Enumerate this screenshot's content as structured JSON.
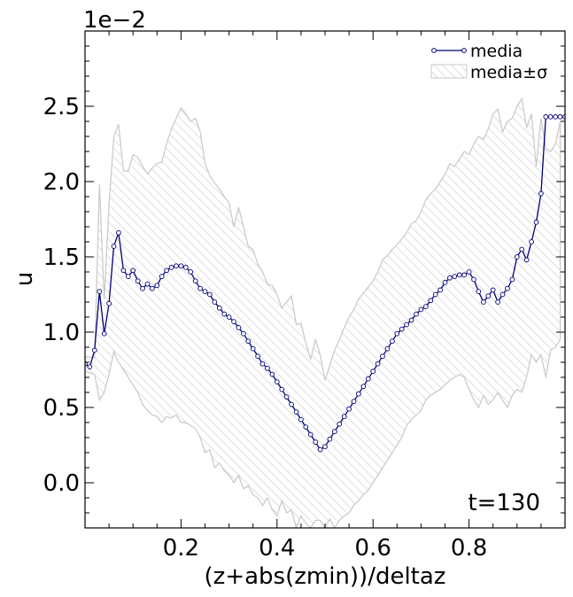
{
  "chart_data": {
    "type": "line",
    "xlabel": "(z+abs(zmin))/deltaz",
    "ylabel": "u",
    "offset_label": "1e−2",
    "annotation": "t=130",
    "xlim": [
      0.0,
      1.0
    ],
    "ylim": [
      -0.3,
      3.0
    ],
    "xticks": [
      0.2,
      0.4,
      0.6,
      0.8
    ],
    "xtick_labels": [
      "0.2",
      "0.4",
      "0.6",
      "0.8"
    ],
    "yticks": [
      0.0,
      0.5,
      1.0,
      1.5,
      2.0,
      2.5
    ],
    "ytick_labels": [
      "0.0",
      "0.5",
      "1.0",
      "1.5",
      "2.0",
      "2.5"
    ],
    "grid": false,
    "legend_position": "top-right",
    "colors": {
      "line": "#00007a",
      "band_edge": "#c8c8c8",
      "band_hatch": "#d9d9d9"
    },
    "series": [
      {
        "name": "media",
        "x": [
          0.0,
          0.01,
          0.02,
          0.03,
          0.04,
          0.05,
          0.06,
          0.07,
          0.08,
          0.09,
          0.1,
          0.11,
          0.12,
          0.13,
          0.14,
          0.15,
          0.16,
          0.17,
          0.18,
          0.19,
          0.2,
          0.21,
          0.22,
          0.23,
          0.24,
          0.25,
          0.26,
          0.27,
          0.28,
          0.29,
          0.3,
          0.31,
          0.32,
          0.33,
          0.34,
          0.35,
          0.36,
          0.37,
          0.38,
          0.39,
          0.4,
          0.41,
          0.42,
          0.43,
          0.44,
          0.45,
          0.46,
          0.47,
          0.48,
          0.49,
          0.5,
          0.51,
          0.52,
          0.53,
          0.54,
          0.55,
          0.56,
          0.57,
          0.58,
          0.59,
          0.6,
          0.61,
          0.62,
          0.63,
          0.64,
          0.65,
          0.66,
          0.67,
          0.68,
          0.69,
          0.7,
          0.71,
          0.72,
          0.73,
          0.74,
          0.75,
          0.76,
          0.77,
          0.78,
          0.79,
          0.8,
          0.81,
          0.82,
          0.83,
          0.84,
          0.85,
          0.86,
          0.87,
          0.88,
          0.89,
          0.9,
          0.91,
          0.92,
          0.93,
          0.94,
          0.95,
          0.96,
          0.97,
          0.98,
          0.99,
          1.0
        ],
        "y": [
          0.79,
          0.77,
          0.88,
          1.27,
          0.99,
          1.19,
          1.57,
          1.66,
          1.41,
          1.37,
          1.41,
          1.34,
          1.29,
          1.32,
          1.29,
          1.31,
          1.37,
          1.41,
          1.43,
          1.44,
          1.44,
          1.43,
          1.4,
          1.34,
          1.29,
          1.27,
          1.25,
          1.2,
          1.16,
          1.12,
          1.1,
          1.07,
          1.03,
          0.99,
          0.94,
          0.89,
          0.84,
          0.79,
          0.76,
          0.72,
          0.67,
          0.62,
          0.57,
          0.52,
          0.47,
          0.42,
          0.37,
          0.32,
          0.27,
          0.22,
          0.24,
          0.29,
          0.34,
          0.39,
          0.44,
          0.49,
          0.54,
          0.59,
          0.64,
          0.69,
          0.74,
          0.79,
          0.84,
          0.89,
          0.94,
          0.99,
          1.02,
          1.05,
          1.08,
          1.12,
          1.15,
          1.17,
          1.21,
          1.25,
          1.28,
          1.33,
          1.36,
          1.37,
          1.38,
          1.38,
          1.4,
          1.35,
          1.27,
          1.2,
          1.24,
          1.28,
          1.2,
          1.25,
          1.29,
          1.35,
          1.5,
          1.55,
          1.48,
          1.6,
          1.73,
          1.92,
          2.43,
          2.43,
          2.43,
          2.43,
          2.43
        ]
      },
      {
        "name": "media±σ",
        "x": [
          0.0,
          0.02,
          0.03,
          0.04,
          0.05,
          0.06,
          0.07,
          0.08,
          0.09,
          0.1,
          0.11,
          0.12,
          0.13,
          0.14,
          0.15,
          0.16,
          0.17,
          0.18,
          0.19,
          0.2,
          0.21,
          0.22,
          0.23,
          0.24,
          0.25,
          0.26,
          0.27,
          0.28,
          0.29,
          0.3,
          0.31,
          0.32,
          0.33,
          0.34,
          0.35,
          0.36,
          0.37,
          0.38,
          0.39,
          0.4,
          0.41,
          0.42,
          0.43,
          0.44,
          0.45,
          0.46,
          0.47,
          0.48,
          0.49,
          0.5,
          0.51,
          0.52,
          0.53,
          0.54,
          0.55,
          0.56,
          0.57,
          0.58,
          0.59,
          0.6,
          0.61,
          0.62,
          0.63,
          0.64,
          0.65,
          0.66,
          0.67,
          0.68,
          0.69,
          0.7,
          0.71,
          0.72,
          0.73,
          0.74,
          0.75,
          0.76,
          0.77,
          0.78,
          0.79,
          0.8,
          0.81,
          0.82,
          0.83,
          0.84,
          0.85,
          0.86,
          0.87,
          0.88,
          0.89,
          0.9,
          0.91,
          0.92,
          0.93,
          0.94,
          0.95,
          0.96,
          0.97,
          0.98,
          0.99
        ],
        "upper": [
          0.84,
          0.83,
          1.98,
          1.22,
          1.85,
          2.3,
          2.38,
          2.07,
          2.07,
          2.18,
          2.16,
          2.1,
          2.05,
          2.09,
          2.12,
          2.13,
          2.25,
          2.35,
          2.42,
          2.49,
          2.45,
          2.4,
          2.42,
          2.33,
          2.12,
          2.04,
          1.99,
          1.95,
          1.9,
          1.86,
          1.7,
          1.83,
          1.7,
          1.57,
          1.55,
          1.45,
          1.4,
          1.32,
          1.31,
          1.25,
          1.16,
          1.2,
          1.24,
          1.05,
          1.06,
          0.93,
          0.82,
          0.95,
          0.85,
          0.68,
          0.78,
          0.88,
          0.95,
          1.03,
          1.1,
          1.15,
          1.22,
          1.26,
          1.3,
          1.34,
          1.4,
          1.48,
          1.51,
          1.55,
          1.58,
          1.62,
          1.66,
          1.72,
          1.74,
          1.8,
          1.88,
          1.92,
          1.95,
          2.0,
          2.05,
          2.12,
          2.1,
          2.15,
          2.2,
          2.18,
          2.25,
          2.3,
          2.28,
          2.35,
          2.45,
          2.48,
          2.33,
          2.4,
          2.42,
          2.5,
          2.55,
          2.36,
          2.45,
          2.1,
          2.42,
          2.22,
          2.2,
          2.25,
          2.4
        ],
        "lower": [
          0.74,
          0.72,
          0.55,
          0.6,
          0.72,
          0.87,
          0.8,
          0.75,
          0.7,
          0.65,
          0.6,
          0.52,
          0.48,
          0.45,
          0.44,
          0.4,
          0.44,
          0.43,
          0.45,
          0.4,
          0.4,
          0.38,
          0.36,
          0.3,
          0.2,
          0.22,
          0.1,
          0.13,
          0.08,
          0.05,
          0.0,
          0.05,
          -0.04,
          -0.02,
          -0.08,
          -0.1,
          -0.15,
          -0.1,
          -0.18,
          -0.22,
          -0.12,
          -0.2,
          -0.18,
          -0.3,
          -0.22,
          -0.27,
          -0.3,
          -0.25,
          -0.25,
          -0.3,
          -0.24,
          -0.3,
          -0.25,
          -0.22,
          -0.2,
          -0.15,
          -0.12,
          -0.08,
          -0.05,
          0.0,
          0.05,
          0.1,
          0.15,
          0.2,
          0.25,
          0.3,
          0.38,
          0.42,
          0.45,
          0.48,
          0.55,
          0.58,
          0.6,
          0.62,
          0.65,
          0.68,
          0.7,
          0.72,
          0.7,
          0.62,
          0.55,
          0.5,
          0.58,
          0.52,
          0.55,
          0.6,
          0.55,
          0.5,
          0.58,
          0.62,
          0.6,
          0.7,
          0.85,
          0.8,
          0.85,
          0.7,
          0.88,
          0.9,
          0.95
        ]
      }
    ]
  }
}
